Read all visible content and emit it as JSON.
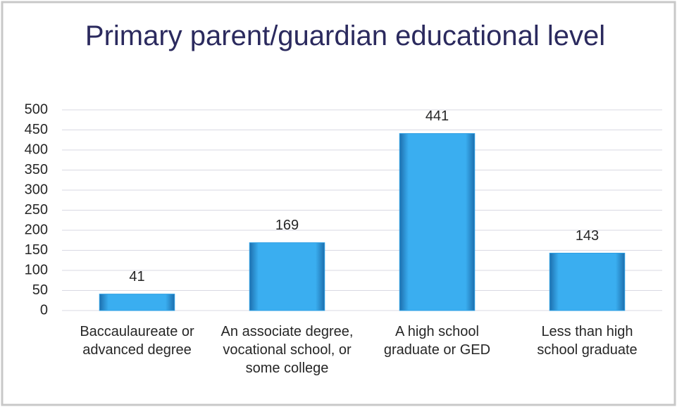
{
  "chart_data": {
    "type": "bar",
    "title": "Primary parent/guardian educational level",
    "categories": [
      "Baccaulaureate or advanced degree",
      "An associate degree, vocational school, or some college",
      "A high school graduate or GED",
      "Less than high school graduate"
    ],
    "values": [
      41,
      169,
      441,
      143
    ],
    "color": "#2d9fe3",
    "ylim": [
      0,
      500
    ],
    "yticks": [
      0,
      50,
      100,
      150,
      200,
      250,
      300,
      350,
      400,
      450,
      500
    ],
    "grid": true
  }
}
